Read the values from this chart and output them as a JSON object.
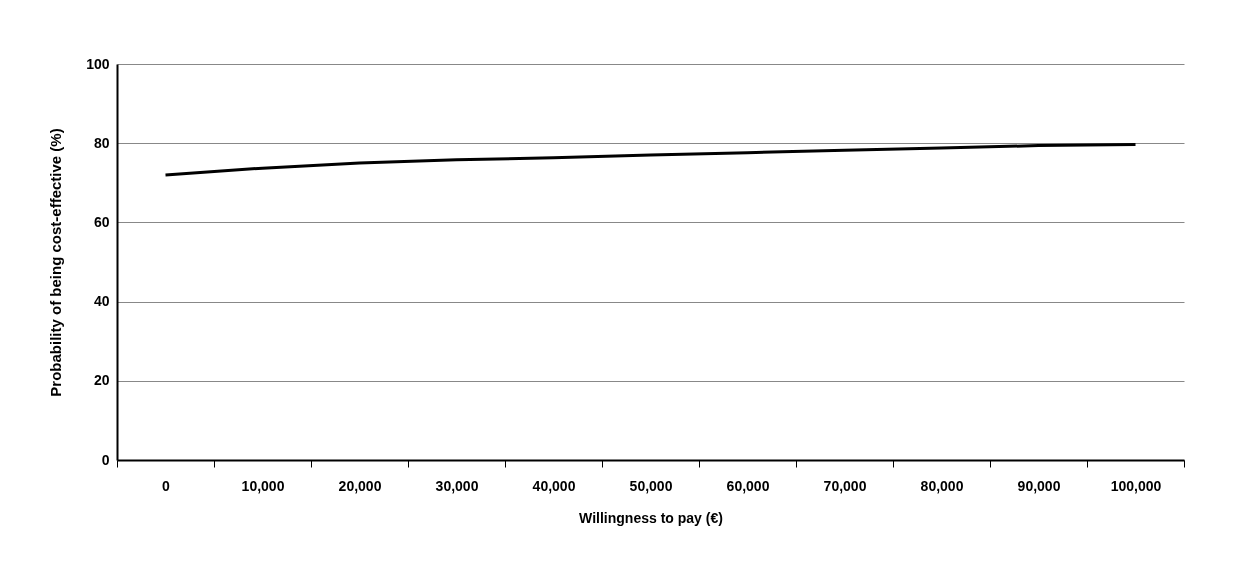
{
  "chart_data": {
    "type": "line",
    "xlabel": "Willingness to pay (€)",
    "ylabel": "Probability of being cost-effective (%)",
    "categories": [
      "0",
      "10,000",
      "20,000",
      "30,000",
      "40,000",
      "50,000",
      "60,000",
      "70,000",
      "80,000",
      "90,000",
      "100,000"
    ],
    "series": [
      {
        "color": "#000000",
        "values": [
          72,
          73.7,
          75,
          75.8,
          76.3,
          77,
          77.6,
          78.2,
          78.8,
          79.4,
          79.7
        ]
      }
    ],
    "ylim": [
      0,
      100
    ],
    "yticks": [
      0,
      20,
      40,
      60,
      80,
      100
    ],
    "grid": "y",
    "legend": false,
    "marker": "none",
    "line_style": "solid"
  }
}
